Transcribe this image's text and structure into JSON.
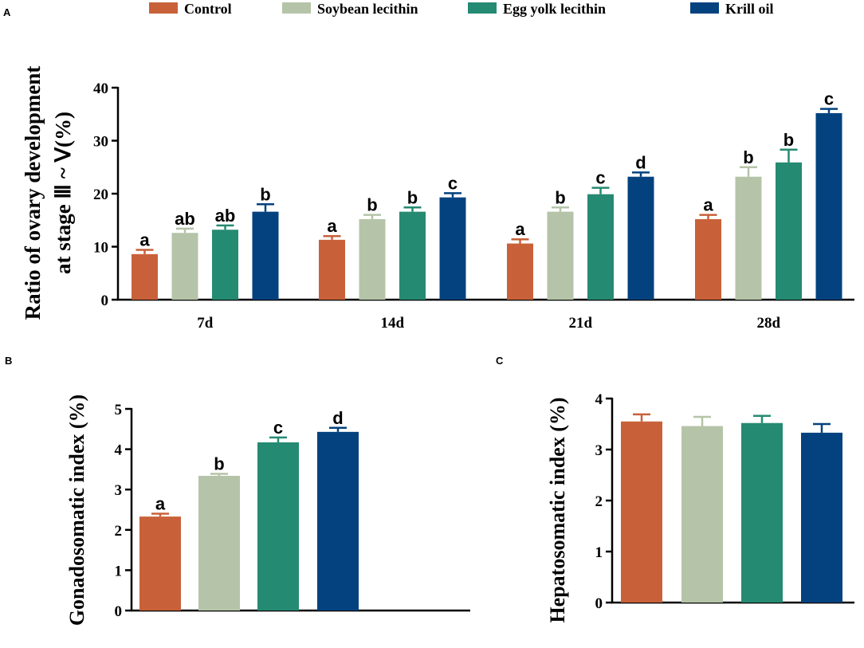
{
  "legend": [
    {
      "name": "Control",
      "color": "#c8613a"
    },
    {
      "name": "Soybean lecithin",
      "color": "#b5c4a8"
    },
    {
      "name": "Egg yolk lecithin",
      "color": "#258a72"
    },
    {
      "name": "Krill oil",
      "color": "#04427f"
    }
  ],
  "chart_data": [
    {
      "panel": "A",
      "type": "bar",
      "ylabel_line1": "Ratio of ovary development",
      "ylabel_line2": "at stage Ⅲ ~ Ⅴ(%)",
      "categories": [
        "7d",
        "14d",
        "21d",
        "28d"
      ],
      "ylim": [
        0,
        40
      ],
      "yticks": [
        0,
        10,
        20,
        30,
        40
      ],
      "series": [
        {
          "name": "Control",
          "values": [
            8.6,
            11.3,
            10.6,
            15.2
          ],
          "errors": [
            0.8,
            0.7,
            0.8,
            0.8
          ],
          "letters": [
            "a",
            "a",
            "a",
            "a"
          ]
        },
        {
          "name": "Soybean lecithin",
          "values": [
            12.6,
            15.2,
            16.6,
            23.2
          ],
          "errors": [
            0.8,
            0.8,
            0.8,
            1.8
          ],
          "letters": [
            "ab",
            "b",
            "b",
            "b"
          ]
        },
        {
          "name": "Egg yolk lecithin",
          "values": [
            13.2,
            16.6,
            19.9,
            25.9
          ],
          "errors": [
            0.8,
            0.8,
            1.2,
            2.4
          ],
          "letters": [
            "ab",
            "b",
            "c",
            "b"
          ]
        },
        {
          "name": "Krill oil",
          "values": [
            16.6,
            19.3,
            23.2,
            35.2
          ],
          "errors": [
            1.4,
            0.8,
            0.8,
            0.8
          ],
          "letters": [
            "b",
            "c",
            "d",
            "c"
          ]
        }
      ]
    },
    {
      "panel": "B",
      "type": "bar",
      "ylabel": "Gonadosomatic index (%)",
      "categories": [
        "Control",
        "Soybean lecithin",
        "Egg yolk lecithin",
        "Krill oil"
      ],
      "ylim": [
        0,
        5
      ],
      "yticks": [
        0,
        1,
        2,
        3,
        4,
        5
      ],
      "values": [
        2.33,
        3.34,
        4.17,
        4.43
      ],
      "errors": [
        0.07,
        0.05,
        0.12,
        0.1
      ],
      "letters": [
        "a",
        "b",
        "c",
        "d"
      ]
    },
    {
      "panel": "C",
      "type": "bar",
      "ylabel": "Hepatosomatic index (%)",
      "categories": [
        "Control",
        "Soybean lecithin",
        "Egg yolk lecithin",
        "Krill oil"
      ],
      "ylim": [
        0,
        4
      ],
      "yticks": [
        0,
        1,
        2,
        3,
        4
      ],
      "values": [
        3.55,
        3.46,
        3.52,
        3.33
      ],
      "errors": [
        0.14,
        0.18,
        0.14,
        0.17
      ],
      "letters": []
    }
  ]
}
